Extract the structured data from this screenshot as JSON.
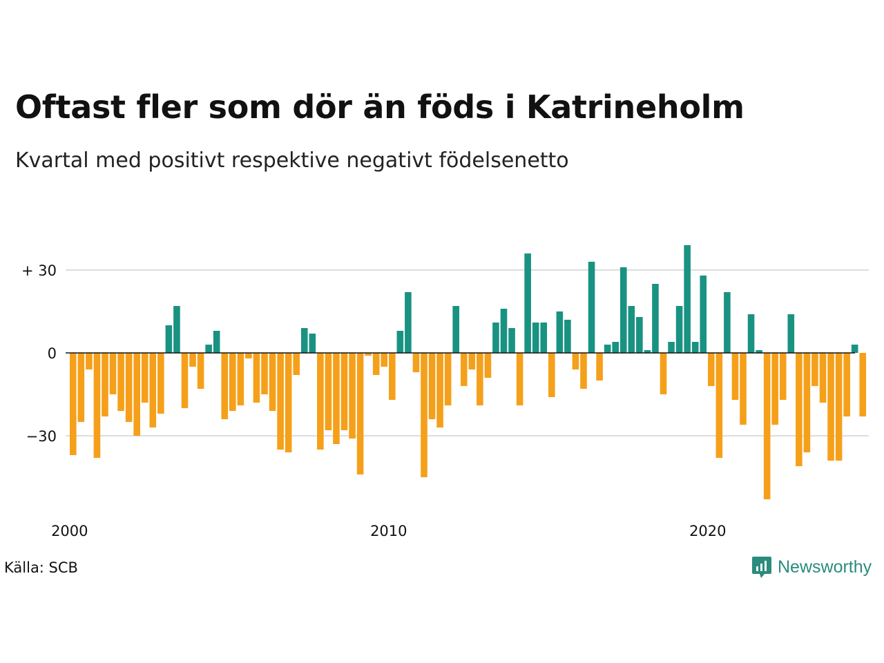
{
  "title": "Oftast fler som dör än föds i Katrineholm",
  "subtitle": "Kvartal med positivt respektive negativt födelsenetto",
  "source": "Källa: SCB",
  "brand": "Newsworthy",
  "colors": {
    "positive": "#1a9282",
    "negative": "#f5a01a",
    "grid": "#dddddd",
    "zero": "#111111",
    "brand": "#2a8c7e"
  },
  "chart_data": {
    "type": "bar",
    "start_year": 2000,
    "start_quarter": 1,
    "ylim": [
      -55,
      40
    ],
    "y_ticks": [
      {
        "value": 30,
        "label": "+ 30"
      },
      {
        "value": 0,
        "label": "0"
      },
      {
        "value": -30,
        "label": "−30"
      }
    ],
    "x_ticks": [
      "2000",
      "2010",
      "2020"
    ],
    "grid": true,
    "values": [
      -37,
      -25,
      -6,
      -38,
      -23,
      -15,
      -21,
      -25,
      -30,
      -18,
      -27,
      -22,
      10,
      17,
      -20,
      -5,
      -13,
      3,
      8,
      -24,
      -21,
      -19,
      -2,
      -18,
      -15,
      -21,
      -35,
      -36,
      -8,
      9,
      7,
      -35,
      -28,
      -33,
      -28,
      -31,
      -44,
      -1,
      -8,
      -5,
      -17,
      8,
      22,
      -7,
      -45,
      -24,
      -27,
      -19,
      17,
      -12,
      -6,
      -19,
      -9,
      11,
      16,
      9,
      -19,
      36,
      11,
      11,
      -16,
      15,
      12,
      -6,
      -13,
      33,
      -10,
      3,
      4,
      31,
      17,
      13,
      1,
      25,
      -15,
      4,
      17,
      39,
      4,
      28,
      -12,
      -38,
      22,
      -17,
      -26,
      14,
      1,
      -53,
      -26,
      -17,
      14,
      -41,
      -36,
      -12,
      -18,
      -39,
      -39,
      -23,
      3,
      -23
    ]
  }
}
